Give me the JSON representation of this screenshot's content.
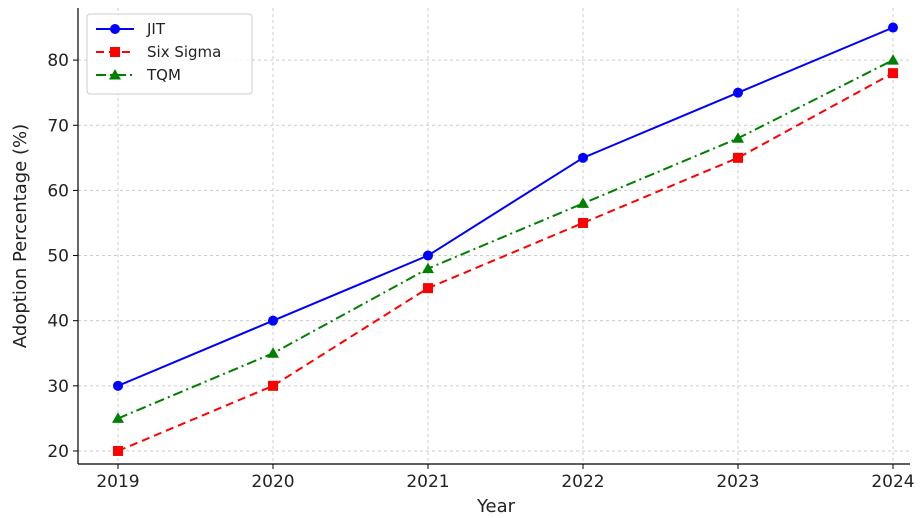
{
  "chart_data": {
    "type": "line",
    "title": "",
    "xlabel": "Year",
    "ylabel": "Adoption Percentage (%)",
    "categories": [
      "2019",
      "2020",
      "2021",
      "2022",
      "2023",
      "2024"
    ],
    "y_ticks": [
      20,
      30,
      40,
      50,
      60,
      70,
      80
    ],
    "ylim": [
      18,
      88
    ],
    "grid": true,
    "legend_position": "top-left",
    "series": [
      {
        "name": "JIT",
        "values": [
          30,
          40,
          50,
          65,
          75,
          85
        ],
        "color": "#0000ff",
        "line_style": "solid",
        "marker": "circle"
      },
      {
        "name": "Six Sigma",
        "values": [
          20,
          30,
          45,
          55,
          65,
          78
        ],
        "color": "#ff0000",
        "line_style": "dashed",
        "marker": "square"
      },
      {
        "name": "TQM",
        "values": [
          25,
          35,
          48,
          58,
          68,
          80
        ],
        "color": "#008000",
        "line_style": "dash-dot",
        "marker": "triangle"
      }
    ]
  }
}
